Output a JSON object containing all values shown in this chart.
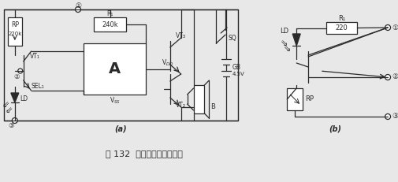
{
  "bg_color": "#e8e8e8",
  "line_color": "#2a2a2a",
  "title_text": "图 132  光控报警器电路之一",
  "label_a": "(a)",
  "label_b": "(b)",
  "fig_width": 5.06,
  "fig_height": 2.31,
  "dpi": 100
}
